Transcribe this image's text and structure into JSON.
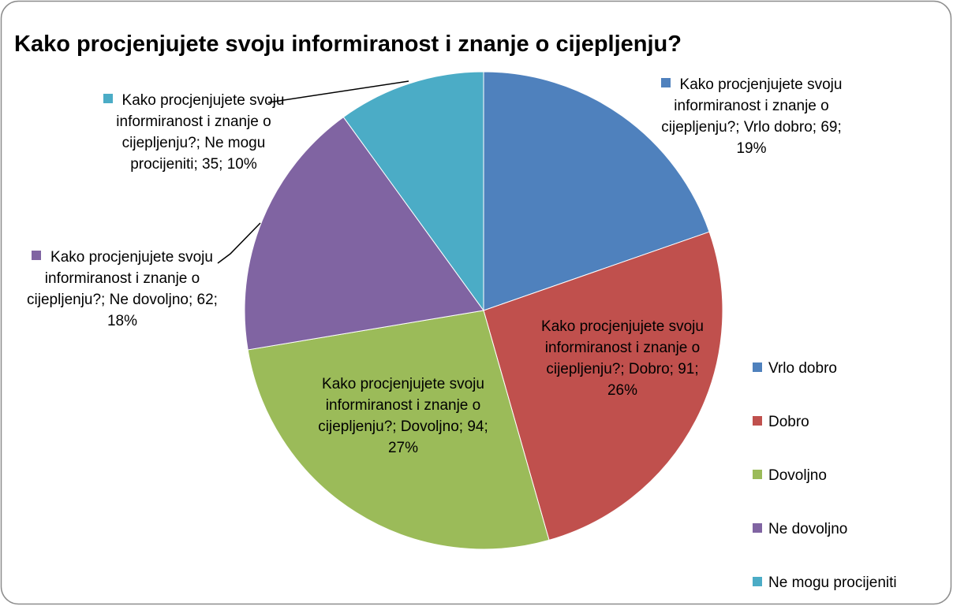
{
  "chart_data": {
    "type": "pie",
    "title": "Kako procjenjujete svoju informiranost i znanje o cijepljenju?",
    "categories": [
      "Vrlo dobro",
      "Dobro",
      "Dovoljno",
      "Ne dovoljno",
      "Ne mogu procijeniti"
    ],
    "values": [
      69,
      91,
      94,
      62,
      35
    ],
    "value_labels": [
      "Kako procjenjujete svoju informiranost i znanje o cijepljenju?; Vrlo dobro; 69; 19%",
      "Kako procjenjujete svoju informiranost i znanje o cijepljenju?; Dobro; 91; 26%",
      "Kako procjenjujete svoju informiranost i znanje o cijepljenju?; Dovoljno; 94; 27%",
      "Kako procjenjujete svoju informiranost i znanje o cijepljenju?; Ne dovoljno; 62; 18%",
      "Kako procjenjujete svoju informiranost i znanje o cijepljenju?; Ne mogu procijeniti; 35; 10%"
    ],
    "colors": [
      "#4f81bd",
      "#c0504d",
      "#9bbb59",
      "#8064a2",
      "#4bacc6"
    ],
    "legend": "right"
  }
}
